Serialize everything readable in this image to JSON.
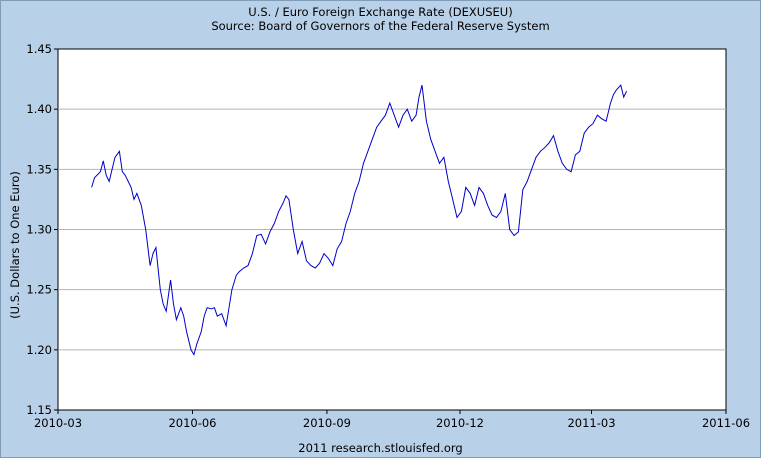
{
  "chart_data": {
    "type": "line",
    "title": "U.S. / Euro Foreign Exchange Rate (DEXUSEU)",
    "subtitle": "Source: Board of Governors of the Federal Reserve System",
    "ylabel": "(U.S. Dollars to One Euro)",
    "xlabel": "",
    "footer": "2011 research.stlouisfed.org",
    "ylim": [
      1.15,
      1.45
    ],
    "xlim": [
      "2010-03-01",
      "2011-06-01"
    ],
    "y_ticks": [
      "1.15",
      "1.20",
      "1.25",
      "1.30",
      "1.35",
      "1.40",
      "1.45"
    ],
    "x_ticks": [
      "2010-03",
      "2010-06",
      "2010-09",
      "2010-12",
      "2011-03",
      "2011-06"
    ],
    "grid": true,
    "line_color": "#0000cc",
    "series": [
      {
        "x": [
          "2010-03-24",
          "2010-03-26",
          "2010-03-30",
          "2010-04-01",
          "2010-04-03",
          "2010-04-05",
          "2010-04-07",
          "2010-04-09",
          "2010-04-12",
          "2010-04-14",
          "2010-04-16",
          "2010-04-18",
          "2010-04-20",
          "2010-04-22",
          "2010-04-24",
          "2010-04-27",
          "2010-04-30",
          "2010-05-03",
          "2010-05-05",
          "2010-05-07",
          "2010-05-10",
          "2010-05-12",
          "2010-05-14",
          "2010-05-17",
          "2010-05-19",
          "2010-05-21",
          "2010-05-24",
          "2010-05-26",
          "2010-05-28",
          "2010-05-31",
          "2010-06-02",
          "2010-06-04",
          "2010-06-07",
          "2010-06-09",
          "2010-06-11",
          "2010-06-14",
          "2010-06-16",
          "2010-06-18",
          "2010-06-21",
          "2010-06-24",
          "2010-06-28",
          "2010-07-01",
          "2010-07-03",
          "2010-07-06",
          "2010-07-09",
          "2010-07-12",
          "2010-07-15",
          "2010-07-18",
          "2010-07-21",
          "2010-07-24",
          "2010-07-27",
          "2010-07-30",
          "2010-08-02",
          "2010-08-04",
          "2010-08-06",
          "2010-08-09",
          "2010-08-12",
          "2010-08-15",
          "2010-08-18",
          "2010-08-21",
          "2010-08-24",
          "2010-08-27",
          "2010-08-30",
          "2010-09-02",
          "2010-09-05",
          "2010-09-08",
          "2010-09-11",
          "2010-09-14",
          "2010-09-17",
          "2010-09-20",
          "2010-09-23",
          "2010-09-26",
          "2010-09-29",
          "2010-10-02",
          "2010-10-05",
          "2010-10-08",
          "2010-10-11",
          "2010-10-14",
          "2010-10-17",
          "2010-10-20",
          "2010-10-23",
          "2010-10-26",
          "2010-10-29",
          "2010-11-01",
          "2010-11-03",
          "2010-11-05",
          "2010-11-08",
          "2010-11-11",
          "2010-11-14",
          "2010-11-17",
          "2010-11-20",
          "2010-11-23",
          "2010-11-26",
          "2010-11-29",
          "2010-12-02",
          "2010-12-05",
          "2010-12-08",
          "2010-12-11",
          "2010-12-14",
          "2010-12-17",
          "2010-12-20",
          "2010-12-23",
          "2010-12-26",
          "2010-12-29",
          "2011-01-01",
          "2011-01-04",
          "2011-01-07",
          "2011-01-10",
          "2011-01-13",
          "2011-01-16",
          "2011-01-19",
          "2011-01-22",
          "2011-01-25",
          "2011-01-28",
          "2011-01-31",
          "2011-02-03",
          "2011-02-06",
          "2011-02-09",
          "2011-02-12",
          "2011-02-15",
          "2011-02-18",
          "2011-02-21",
          "2011-02-24",
          "2011-02-27",
          "2011-03-02",
          "2011-03-05",
          "2011-03-08",
          "2011-03-11",
          "2011-03-14",
          "2011-03-16",
          "2011-03-18",
          "2011-03-21",
          "2011-03-23",
          "2011-03-25"
        ],
        "values": [
          1.335,
          1.343,
          1.348,
          1.357,
          1.345,
          1.34,
          1.35,
          1.36,
          1.365,
          1.348,
          1.345,
          1.34,
          1.335,
          1.325,
          1.33,
          1.32,
          1.3,
          1.27,
          1.28,
          1.285,
          1.25,
          1.238,
          1.232,
          1.258,
          1.238,
          1.225,
          1.235,
          1.228,
          1.215,
          1.2,
          1.196,
          1.205,
          1.215,
          1.228,
          1.235,
          1.234,
          1.235,
          1.228,
          1.23,
          1.22,
          1.25,
          1.262,
          1.265,
          1.268,
          1.27,
          1.28,
          1.295,
          1.296,
          1.288,
          1.298,
          1.305,
          1.315,
          1.322,
          1.328,
          1.325,
          1.3,
          1.28,
          1.29,
          1.274,
          1.27,
          1.268,
          1.272,
          1.28,
          1.276,
          1.27,
          1.284,
          1.29,
          1.305,
          1.315,
          1.33,
          1.34,
          1.355,
          1.365,
          1.375,
          1.385,
          1.39,
          1.395,
          1.405,
          1.395,
          1.385,
          1.395,
          1.4,
          1.39,
          1.395,
          1.41,
          1.42,
          1.39,
          1.375,
          1.365,
          1.355,
          1.36,
          1.34,
          1.325,
          1.31,
          1.315,
          1.335,
          1.33,
          1.32,
          1.335,
          1.33,
          1.32,
          1.312,
          1.31,
          1.315,
          1.33,
          1.3,
          1.295,
          1.298,
          1.333,
          1.34,
          1.35,
          1.36,
          1.365,
          1.368,
          1.372,
          1.378,
          1.365,
          1.355,
          1.35,
          1.348,
          1.362,
          1.365,
          1.38,
          1.385,
          1.388,
          1.395,
          1.392,
          1.39,
          1.405,
          1.412,
          1.416,
          1.42,
          1.41,
          1.415
        ]
      }
    ]
  }
}
